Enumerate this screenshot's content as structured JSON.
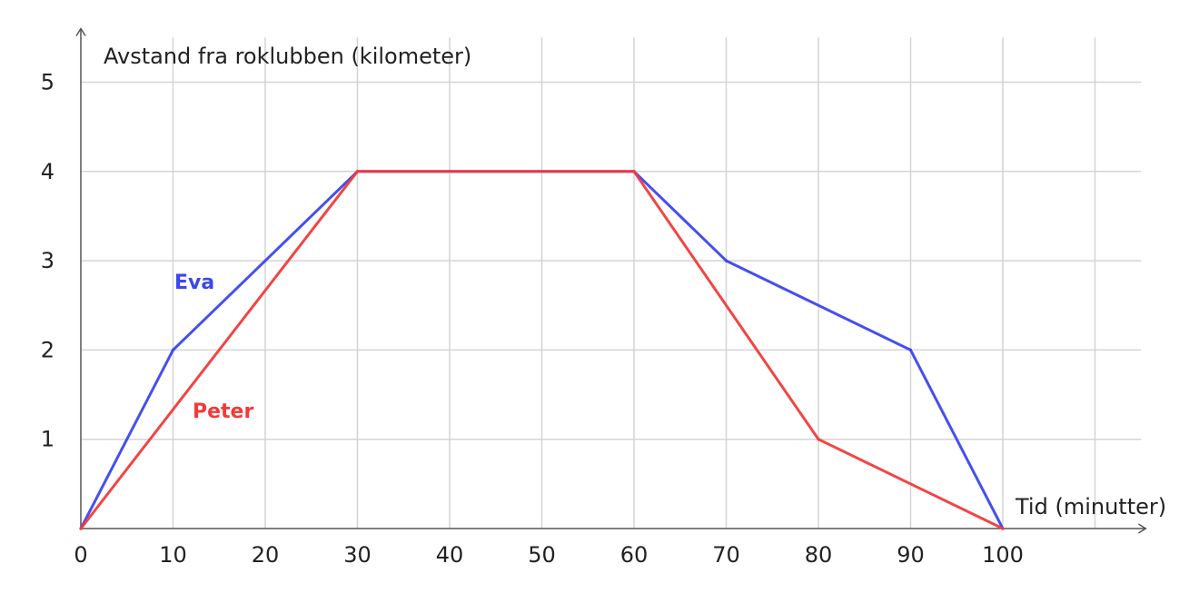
{
  "chart_data": {
    "type": "line",
    "ylabel": "Avstand fra roklubben (kilometer)",
    "xlabel": "Tid (minutter)",
    "x_ticks": [
      0,
      10,
      20,
      30,
      40,
      50,
      60,
      70,
      80,
      90,
      100
    ],
    "y_ticks": [
      1,
      2,
      3,
      4,
      5
    ],
    "xlim": [
      0,
      115
    ],
    "ylim": [
      0,
      5.5
    ],
    "grid": true,
    "legend": "inline labels",
    "series": [
      {
        "name": "Eva",
        "color": "#3b46f0",
        "points": [
          [
            0,
            0
          ],
          [
            10,
            2
          ],
          [
            30,
            4
          ],
          [
            60,
            4
          ],
          [
            70,
            3
          ],
          [
            90,
            2
          ],
          [
            100,
            0
          ]
        ]
      },
      {
        "name": "Peter",
        "color": "#f23a3a",
        "points": [
          [
            0,
            0
          ],
          [
            30,
            4
          ],
          [
            60,
            4
          ],
          [
            80,
            1
          ],
          [
            100,
            0
          ]
        ]
      }
    ]
  }
}
